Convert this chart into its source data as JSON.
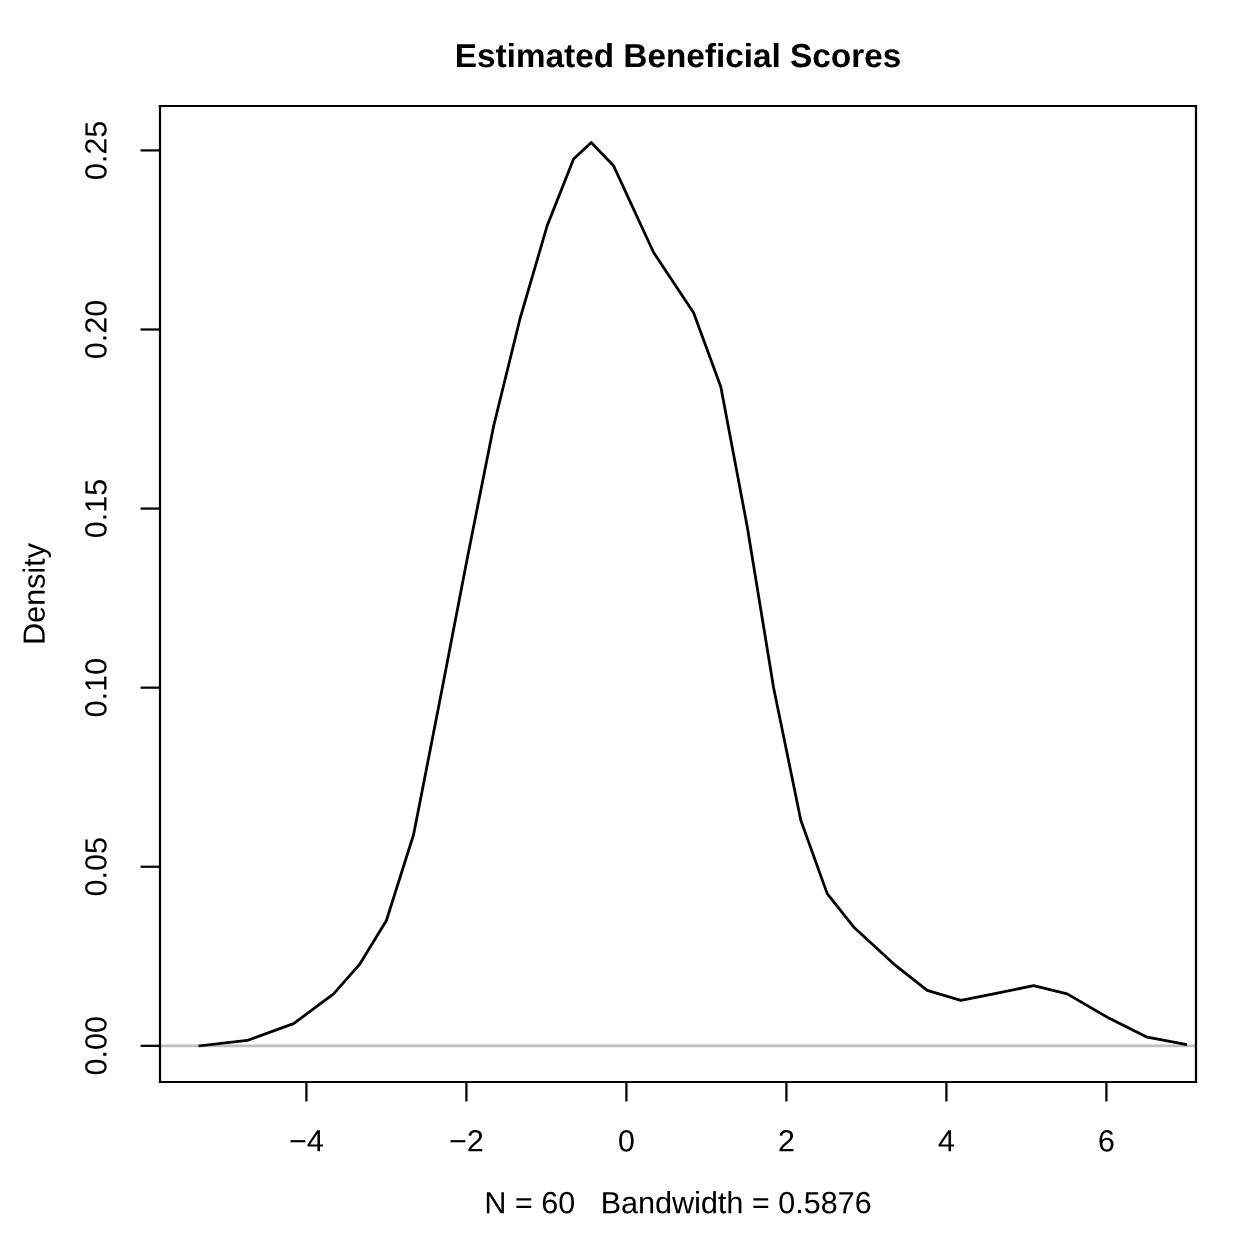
{
  "chart_data": {
    "type": "line",
    "title": "Estimated Beneficial Scores",
    "xlabel": "N = 60   Bandwidth = 0.5876",
    "ylabel": "Density",
    "x": [
      -5.33,
      -4.74,
      -4.16,
      -3.66,
      -3.33,
      -3.0,
      -2.66,
      -2.33,
      -1.99,
      -1.66,
      -1.33,
      -0.99,
      -0.66,
      -0.44,
      -0.16,
      0.34,
      0.84,
      1.18,
      1.51,
      1.84,
      2.18,
      2.51,
      2.84,
      3.34,
      3.76,
      4.18,
      4.59,
      5.09,
      5.51,
      6.01,
      6.51,
      6.99
    ],
    "series": [
      {
        "color": "#000000",
        "values": [
          0.0,
          0.0015,
          0.0062,
          0.0145,
          0.0229,
          0.035,
          0.059,
          0.0966,
          0.136,
          0.173,
          0.203,
          0.229,
          0.2476,
          0.2522,
          0.2457,
          0.2215,
          0.2047,
          0.184,
          0.145,
          0.1,
          0.063,
          0.0425,
          0.0332,
          0.0229,
          0.0155,
          0.0127,
          0.0145,
          0.0168,
          0.0145,
          0.008,
          0.0024,
          0.0004
        ]
      }
    ],
    "xlim": [
      -5.83,
      7.12
    ],
    "ylim": [
      -0.0101,
      0.2624
    ],
    "xticks": [
      {
        "value": -4,
        "label": "−4"
      },
      {
        "value": -2,
        "label": "−2"
      },
      0,
      2,
      4,
      6
    ],
    "yticks": [
      {
        "value": 0,
        "label": "0.00"
      },
      {
        "value": 0.05,
        "label": "0.05"
      },
      {
        "value": 0.1,
        "label": "0.10"
      },
      {
        "value": 0.15,
        "label": "0.15"
      },
      {
        "value": 0.2,
        "label": "0.20"
      },
      {
        "value": 0.25,
        "label": "0.25"
      }
    ],
    "ref_lines": [
      {
        "axis": "y",
        "value": 0,
        "color": "#bebebe"
      }
    ],
    "grid": false,
    "legend": false,
    "marker": "none",
    "line_style": "solid"
  }
}
